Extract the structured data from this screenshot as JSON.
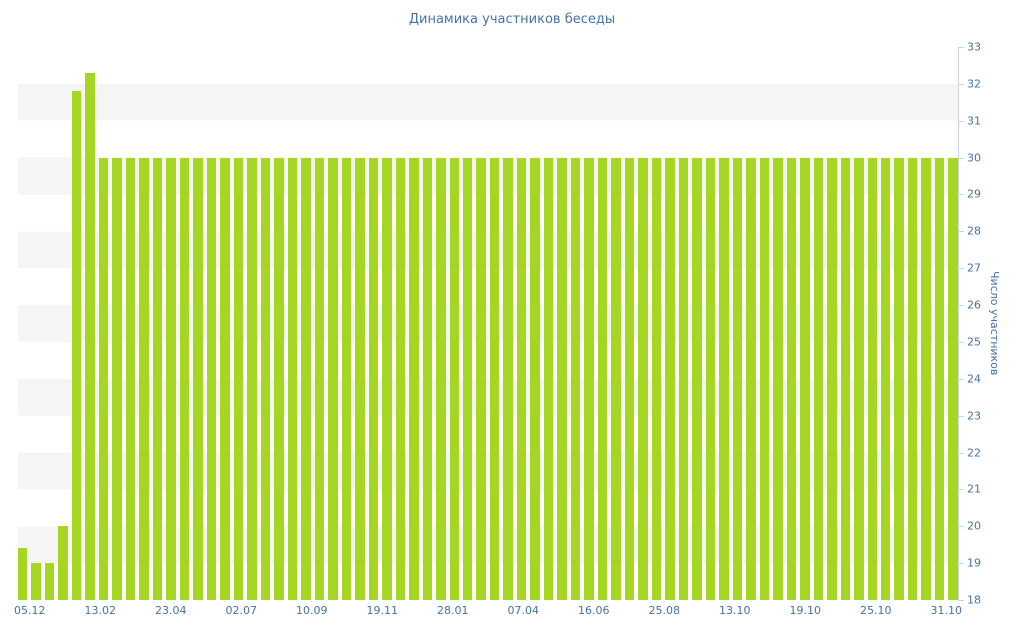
{
  "chart_data": {
    "type": "bar",
    "title": "Динамика участников беседы",
    "xlabel": "",
    "ylabel": "Число участников",
    "ylim": [
      18,
      33
    ],
    "yaxis_position": "right",
    "grid": "alternating-horizontal-bands",
    "legend": "none",
    "y_ticks": [
      18,
      19,
      20,
      21,
      22,
      23,
      24,
      25,
      26,
      27,
      28,
      29,
      30,
      31,
      32,
      33
    ],
    "x_tick_labels": [
      "05.12",
      "13.02",
      "23.04",
      "02.07",
      "10.09",
      "19.11",
      "28.01",
      "07.04",
      "16.06",
      "25.08",
      "13.10",
      "19.10",
      "25.10",
      "31.10"
    ],
    "values": [
      19.4,
      19,
      19,
      20,
      31.8,
      32.3,
      30,
      30,
      30,
      30,
      30,
      30,
      30,
      30,
      30,
      30,
      30,
      30,
      30,
      30,
      30,
      30,
      30,
      30,
      30,
      30,
      30,
      30,
      30,
      30,
      30,
      30,
      30,
      30,
      30,
      30,
      30,
      30,
      30,
      30,
      30,
      30,
      30,
      30,
      30,
      30,
      30,
      30,
      30,
      30,
      30,
      30,
      30,
      30,
      30,
      30,
      30,
      30,
      30,
      30,
      30,
      30,
      30,
      30,
      30,
      30,
      30,
      30,
      30,
      30
    ],
    "colors": {
      "bar": "#a5d622",
      "text": "#4572a7",
      "band": "#f5f5f5",
      "axis": "#c9d4dd"
    }
  }
}
